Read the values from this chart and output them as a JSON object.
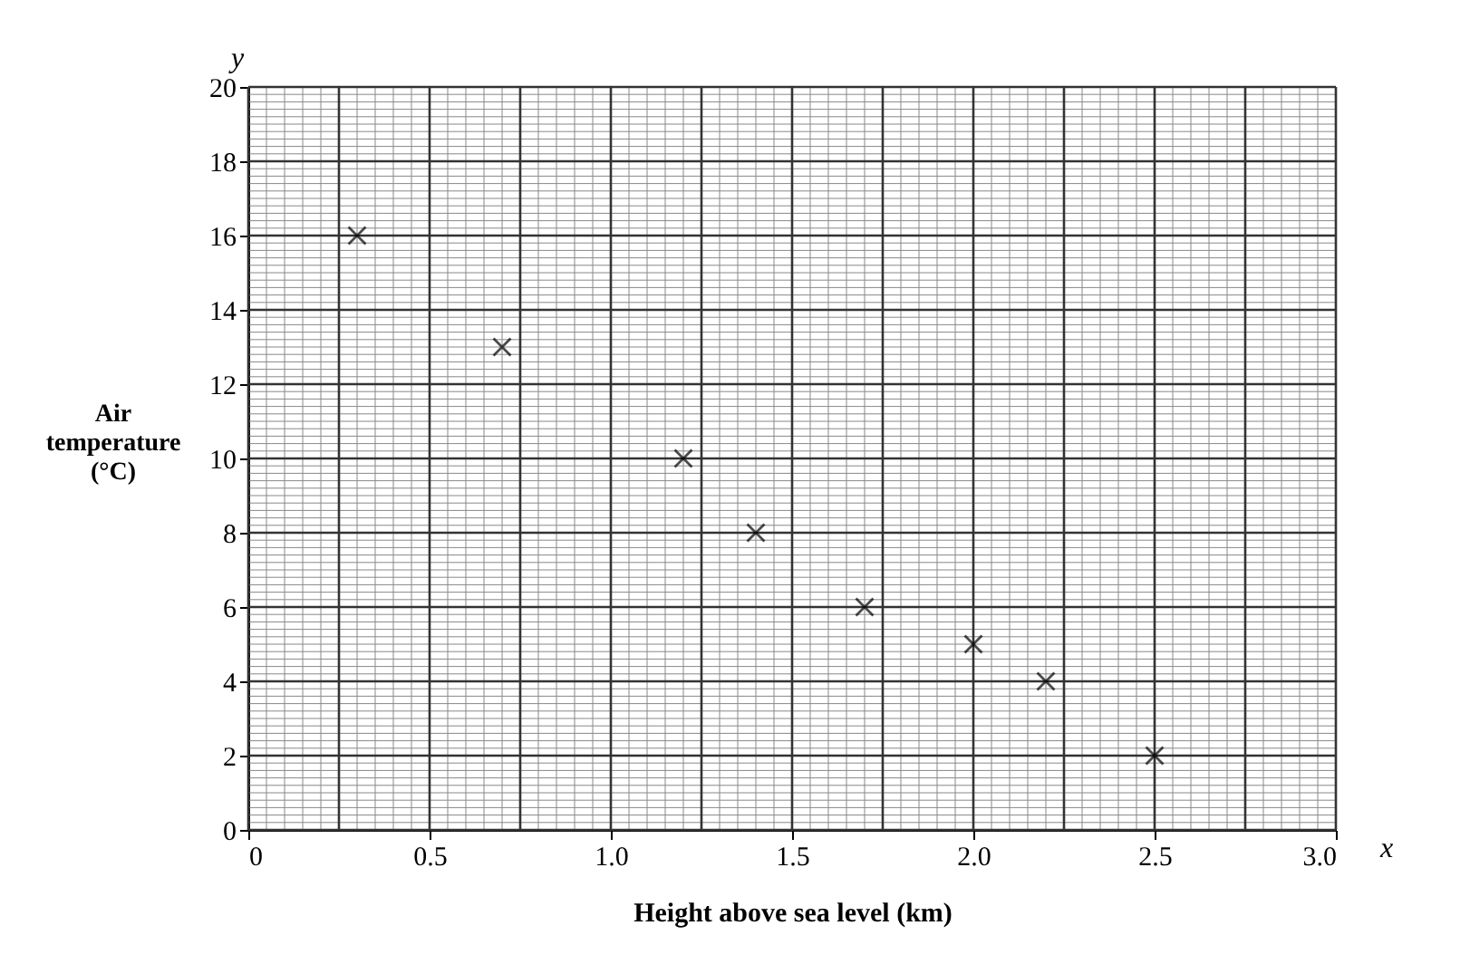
{
  "chart_data": {
    "type": "scatter",
    "xlabel": "Height above sea level (km)",
    "ylabel": "Air temperature (°C)",
    "annotations": [
      "x",
      "y"
    ],
    "series": [
      {
        "color": "#000000",
        "x": [
          0.3,
          0.7,
          1.2,
          1.4,
          1.7,
          2.0,
          2.2,
          2.5
        ],
        "values": [
          16,
          13,
          10,
          8,
          6,
          5,
          4,
          2
        ]
      }
    ],
    "xlim": [
      0,
      3
    ],
    "ylim": [
      0,
      20
    ],
    "xticks": [
      0,
      {
        "value": 0.5,
        "label": "0.5"
      },
      {
        "value": 1,
        "label": "1.0"
      },
      {
        "value": 1.5,
        "label": "1.5"
      },
      {
        "value": 2,
        "label": "2.0"
      },
      {
        "value": 2.5,
        "label": "2.5"
      },
      {
        "value": 3,
        "label": "3.0"
      }
    ],
    "yticks": [
      0,
      2,
      4,
      6,
      8,
      10,
      12,
      14,
      16,
      18,
      20
    ],
    "grid": true,
    "marker": "cross",
    "legend": false
  }
}
